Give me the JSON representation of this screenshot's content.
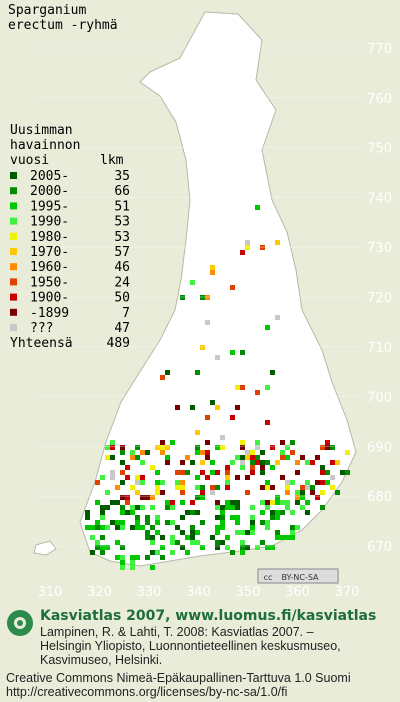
{
  "title": [
    "Sparganium",
    "erectum -ryhmä"
  ],
  "legend": {
    "header": [
      "Uusimman",
      "havainnon"
    ],
    "col_year": "vuosi",
    "col_count": "lkm",
    "rows": [
      {
        "label": "2005-",
        "count": 35,
        "color": "#005a00"
      },
      {
        "label": "2000-",
        "count": 66,
        "color": "#008c00"
      },
      {
        "label": "1995-",
        "count": 51,
        "color": "#00c800"
      },
      {
        "label": "1990-",
        "count": 53,
        "color": "#40f040"
      },
      {
        "label": "1980-",
        "count": 53,
        "color": "#f0f000"
      },
      {
        "label": "1970-",
        "count": 57,
        "color": "#ffc800"
      },
      {
        "label": "1960-",
        "count": 46,
        "color": "#ff8c00"
      },
      {
        "label": "1950-",
        "count": 24,
        "color": "#e04000"
      },
      {
        "label": "1900-",
        "count": 50,
        "color": "#c80000"
      },
      {
        "label": "-1899",
        "count": 7,
        "color": "#780000"
      },
      {
        "label": "???",
        "count": 47,
        "color": "#c8c8c8"
      }
    ],
    "total_label": "Yhteensä",
    "total": 489
  },
  "grid": {
    "y_labels": [
      770,
      760,
      750,
      740,
      730,
      720,
      710,
      700,
      690,
      680,
      670
    ],
    "x_labels": [
      310,
      320,
      330,
      340,
      350,
      360,
      370
    ]
  },
  "badge": {
    "icon": "cc",
    "text": "BY-NC-SA"
  },
  "footer": {
    "brand": "Kasviatlas 2007, www.luomus.fi/kasviatlas",
    "citation": [
      "Lampinen, R. & Lahti, T. 2008: Kasviatlas 2007. –",
      "Helsingin Yliopisto, Luonnontieteellinen keskusmuseo,",
      "Kasvimuseo, Helsinki."
    ],
    "license": [
      "Creative Commons Nimeä-Epäkaupallinen-Tarttuva 1.0 Suomi",
      "http://creativecommons.org/licenses/by-nc-sa/1.0/fi"
    ]
  }
}
